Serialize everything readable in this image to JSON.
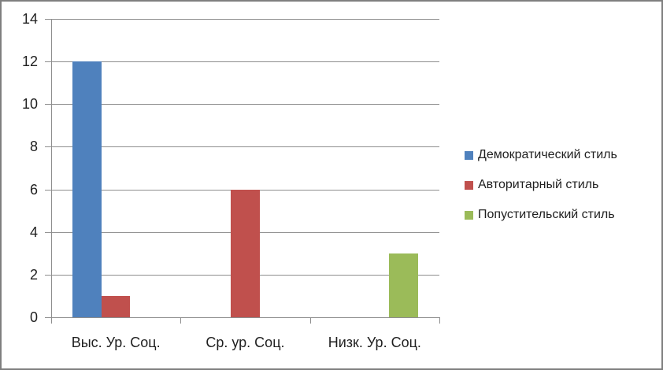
{
  "chart_data": {
    "type": "bar",
    "categories": [
      "Выс. Ур. Соц.",
      "Ср. ур. Соц.",
      "Низк. Ур. Соц."
    ],
    "series": [
      {
        "name": "Демократический стиль",
        "color": "#4F81BD",
        "values": [
          12,
          0,
          0
        ]
      },
      {
        "name": "Авторитарный стиль",
        "color": "#C0504D",
        "values": [
          1,
          6,
          0
        ]
      },
      {
        "name": "Попустительский стиль",
        "color": "#9BBB59",
        "values": [
          0,
          0,
          3
        ]
      }
    ],
    "title": "",
    "xlabel": "",
    "ylabel": "",
    "ylim": [
      0,
      14
    ],
    "yticks": [
      0,
      2,
      4,
      6,
      8,
      10,
      12,
      14
    ],
    "grid": true,
    "legend_position": "right",
    "gap_width_percent": 150,
    "grid_color": "#8e8e8e",
    "axis_color": "#8e8e8e",
    "text_color": "#1f1f1f",
    "border_color": "#7f7f7f",
    "background_color": "#ffffff"
  }
}
